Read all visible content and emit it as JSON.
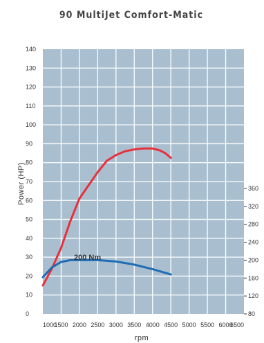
{
  "chart_data": {
    "type": "line",
    "title": "90 MultiJet Comfort-Matic",
    "xlabel": "rpm",
    "ylabel": "Power (HP)",
    "x_ticks": [
      1000,
      1500,
      2000,
      2500,
      3000,
      3500,
      4000,
      4500,
      5000,
      5500,
      6000,
      6500
    ],
    "y_ticks": [
      0,
      10,
      20,
      30,
      40,
      50,
      60,
      70,
      80,
      90,
      100,
      110,
      120,
      130,
      140
    ],
    "y2_ticks": [
      80,
      120,
      160,
      200,
      240,
      280,
      320,
      360
    ],
    "xlim": [
      1000,
      6500
    ],
    "ylim": [
      0,
      140
    ],
    "y2lim": [
      80,
      360
    ],
    "grid": true,
    "annotation": "200 Nm",
    "series": [
      {
        "axis": "left",
        "color": "#e8303d",
        "points": [
          [
            1000,
            15
          ],
          [
            1250,
            24
          ],
          [
            1500,
            35
          ],
          [
            1750,
            49
          ],
          [
            2000,
            61
          ],
          [
            2250,
            68
          ],
          [
            2500,
            75
          ],
          [
            2750,
            81
          ],
          [
            3000,
            84
          ],
          [
            3250,
            86
          ],
          [
            3500,
            87
          ],
          [
            3750,
            87.5
          ],
          [
            4000,
            87.5
          ],
          [
            4200,
            86.5
          ],
          [
            4350,
            85
          ],
          [
            4500,
            82.5
          ]
        ]
      },
      {
        "axis": "right",
        "color": "#1f6cb5",
        "points": [
          [
            1000,
            162
          ],
          [
            1250,
            184
          ],
          [
            1500,
            196
          ],
          [
            1750,
            200
          ],
          [
            2000,
            200
          ],
          [
            2500,
            200
          ],
          [
            3000,
            197
          ],
          [
            3500,
            190
          ],
          [
            4000,
            180
          ],
          [
            4500,
            168
          ]
        ]
      }
    ]
  }
}
